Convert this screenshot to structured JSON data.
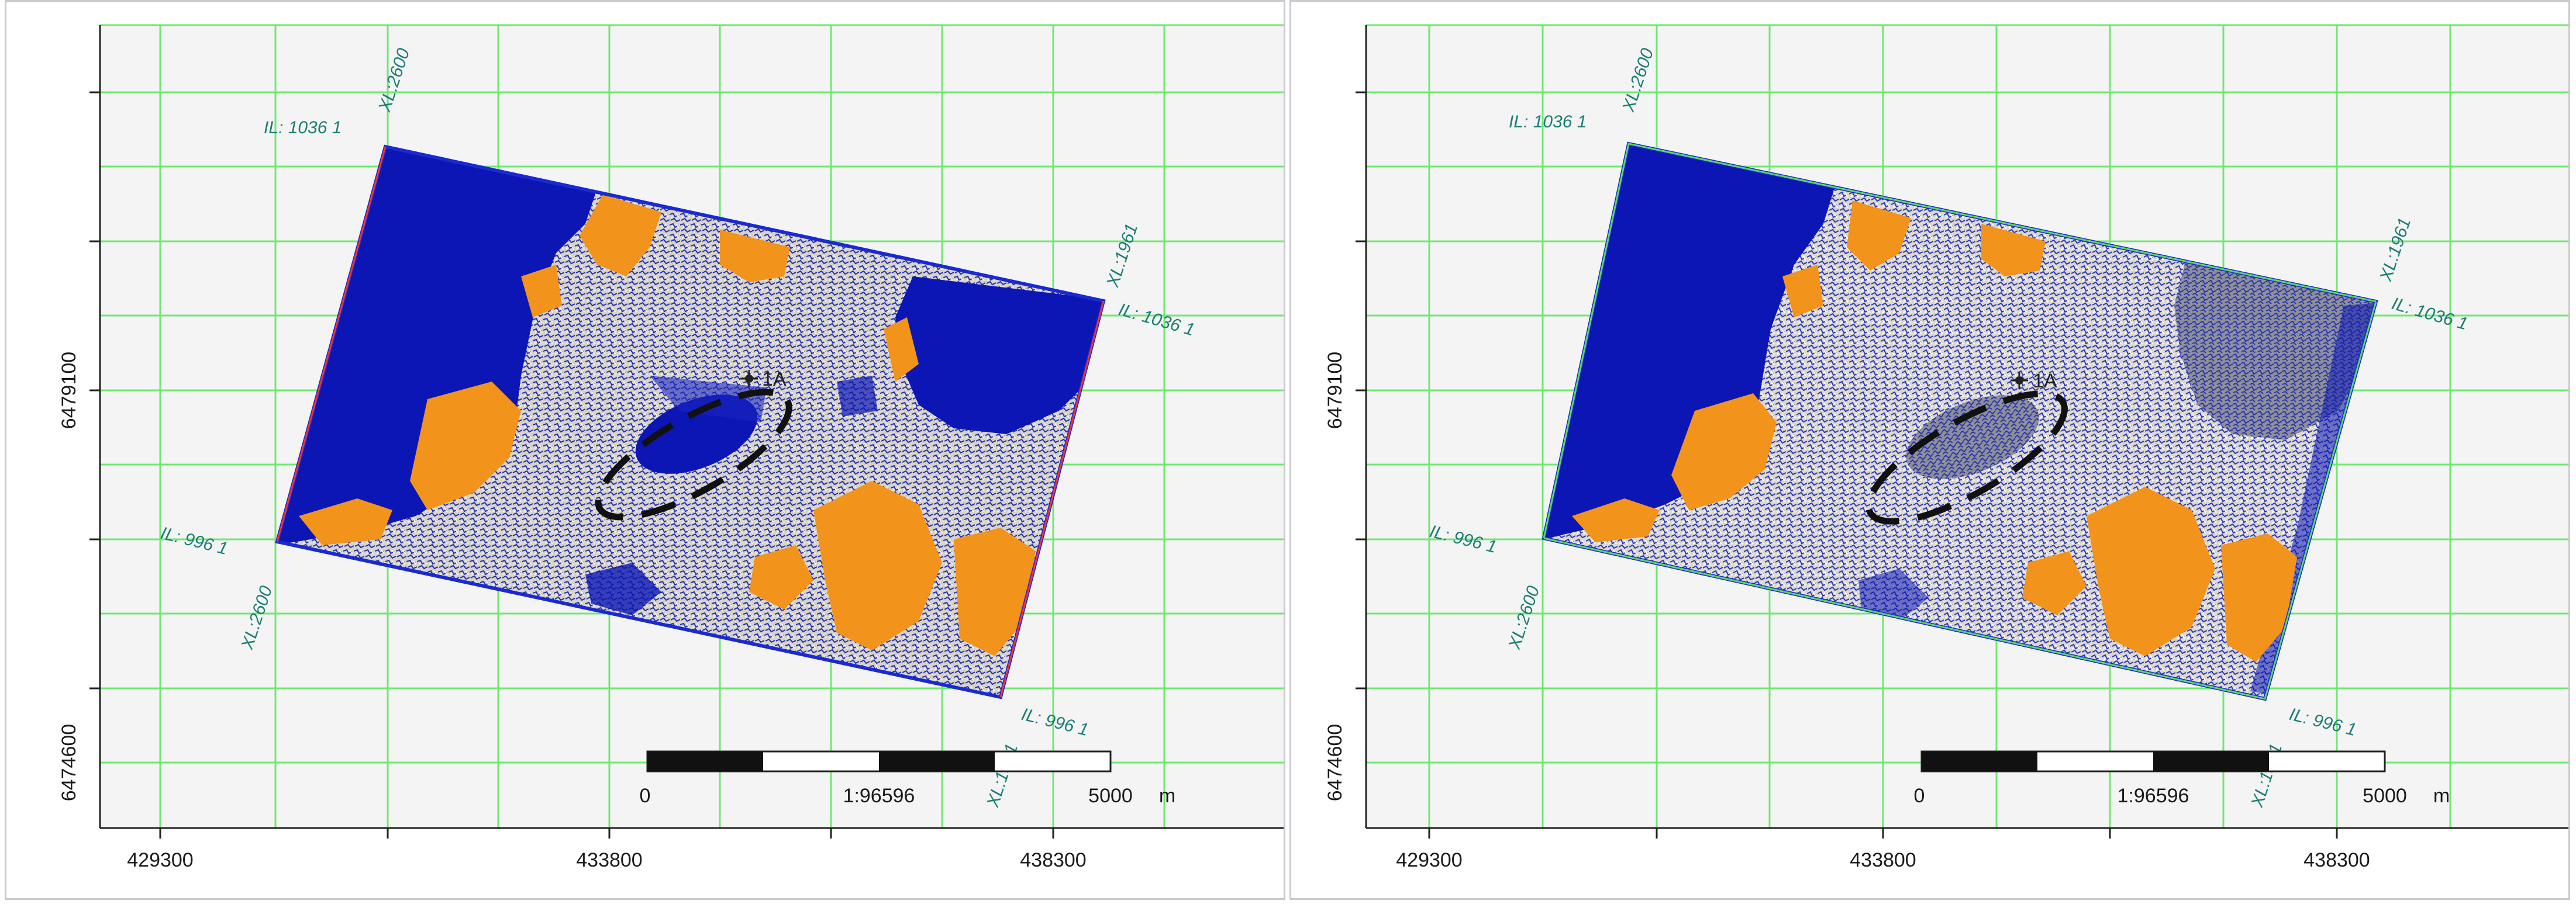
{
  "panels": [
    {
      "id": "left",
      "x_ticks": [
        "429300",
        "433800",
        "438300"
      ],
      "y_ticks": [
        "6479100",
        "6474600"
      ],
      "corners": {
        "top_il": "IL: 1036 1",
        "top_xl": "XL:2600",
        "right_xl": "XL:1961",
        "right_il": "IL: 1036 1",
        "left_il": "IL: 996 1",
        "left_xl": "XL:2600",
        "bottom_il": "IL: 996 1",
        "bottom_xl": "XL:1961"
      },
      "well_label": "1A",
      "scale": {
        "start": "0",
        "ratio": "1:96596",
        "end": "5000",
        "unit": "m"
      },
      "colors": {
        "base": "#0b16b4",
        "sand": "#f2931b",
        "noise": "#d8d3c8"
      }
    },
    {
      "id": "right",
      "x_ticks": [
        "429300",
        "433800",
        "438300"
      ],
      "y_ticks": [
        "6479100",
        "6474600"
      ],
      "corners": {
        "top_il": "IL: 1036 1",
        "top_xl": "XL:2600",
        "right_xl": "XL:1961",
        "right_il": "IL: 1036 1",
        "left_il": "IL: 996 1",
        "left_xl": "XL:2600",
        "bottom_il": "IL: 996 1",
        "bottom_xl": "XL:1961"
      },
      "well_label": "1A",
      "scale": {
        "start": "0",
        "ratio": "1:96596",
        "end": "5000",
        "unit": "m"
      },
      "colors": {
        "base": "#0b16b4",
        "sand": "#f2931b",
        "noise": "#d8d3c8"
      }
    }
  ]
}
